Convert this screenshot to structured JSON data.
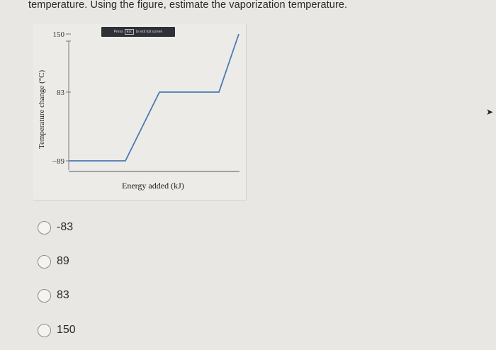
{
  "question": "temperature. Using the figure, estimate the vaporization temperature.",
  "banner": {
    "press": "Press",
    "esc": "Esc",
    "rest": "to exit full screen"
  },
  "chart_data": {
    "type": "line",
    "xlabel": "Energy added (kJ)",
    "ylabel": "Temperature change (°C)",
    "ytick_labels": [
      "150",
      "83",
      "−89"
    ],
    "ytick_values": [
      150,
      83,
      -89
    ],
    "series": [
      {
        "x": [
          0,
          20,
          32,
          50,
          53,
          60
        ],
        "y": [
          -89,
          -89,
          83,
          83,
          83,
          150
        ]
      }
    ]
  },
  "options": [
    {
      "label": "-83"
    },
    {
      "label": "89"
    },
    {
      "label": "83"
    },
    {
      "label": "150"
    }
  ],
  "colors": {
    "curve": "#4a7ab3",
    "axis": "#555555"
  }
}
